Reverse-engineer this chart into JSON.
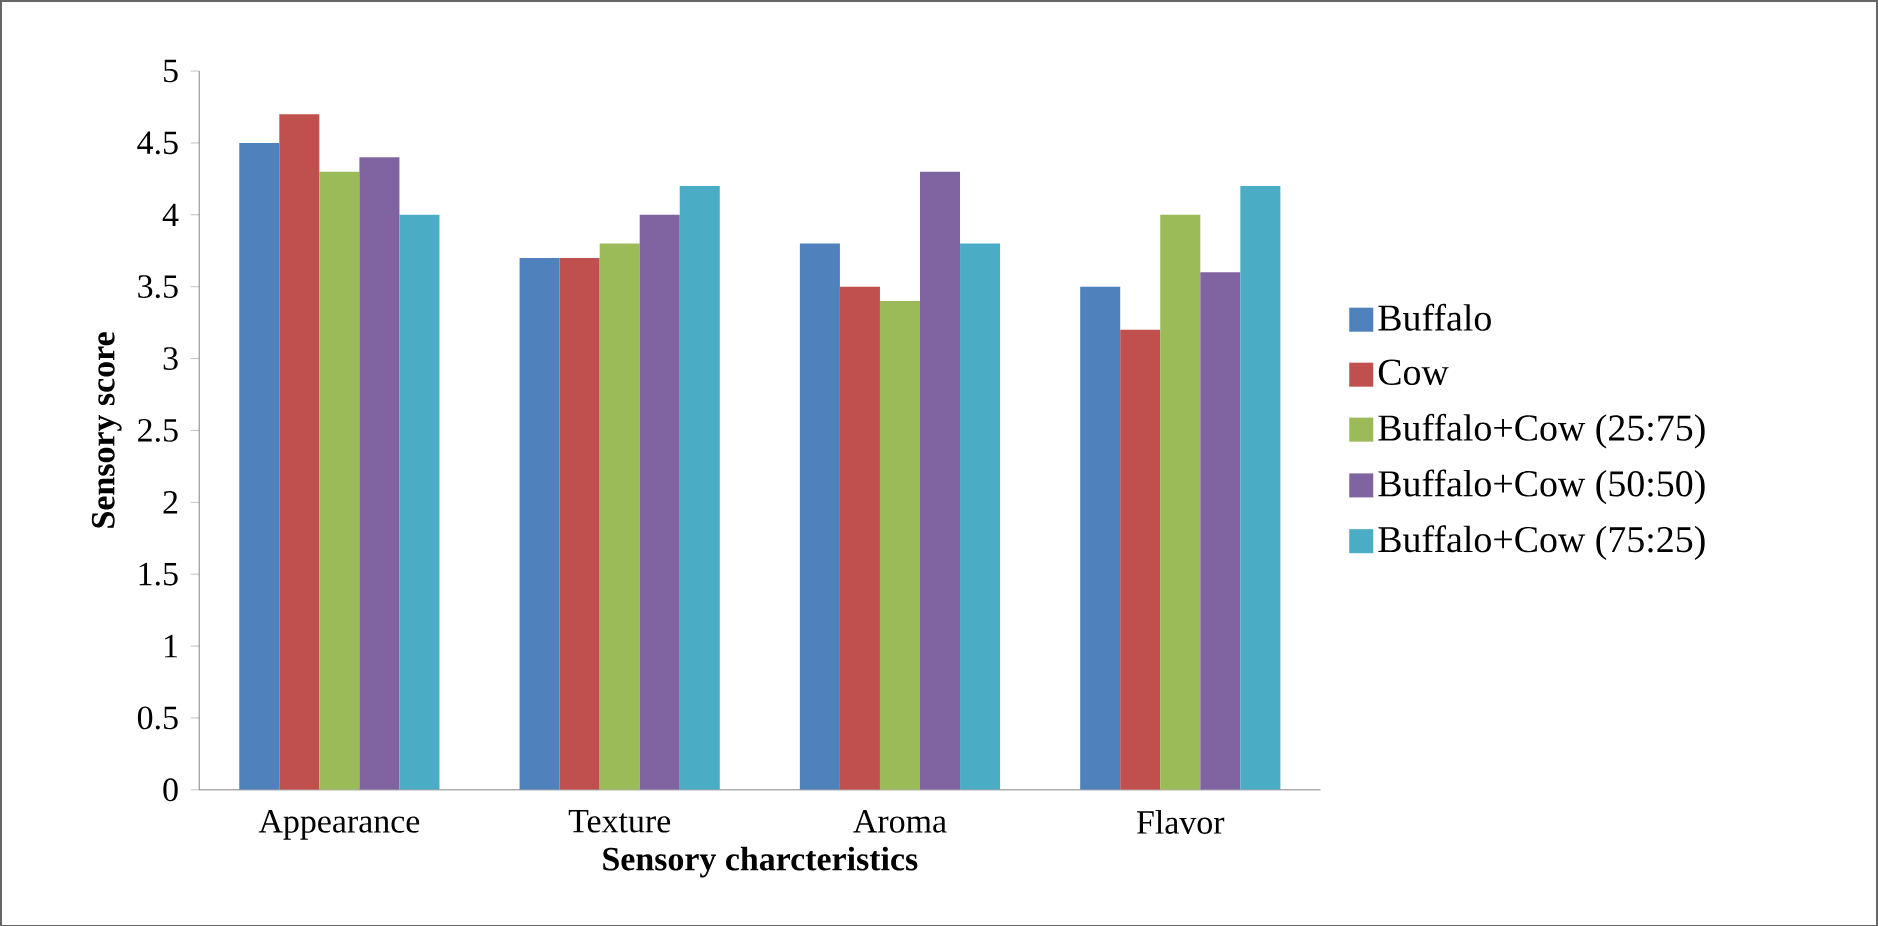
{
  "chart_data": {
    "type": "bar",
    "xlabel": "Sensory charcteristics",
    "ylabel": "Sensory score",
    "categories": [
      "Appearance",
      "Texture",
      "Aroma",
      "Flavor"
    ],
    "series": [
      {
        "name": "Buffalo",
        "color": "#4f81bd",
        "values": [
          4.5,
          3.7,
          3.8,
          3.5
        ]
      },
      {
        "name": "Cow",
        "color": "#c0504d",
        "values": [
          4.7,
          3.7,
          3.5,
          3.2
        ]
      },
      {
        "name": "Buffalo+Cow (25:75)",
        "color": "#9bbb59",
        "values": [
          4.3,
          3.8,
          3.4,
          4.0
        ]
      },
      {
        "name": "Buffalo+Cow (50:50)",
        "color": "#8064a2",
        "values": [
          4.4,
          4.0,
          4.3,
          3.6
        ]
      },
      {
        "name": "Buffalo+Cow (75:25)",
        "color": "#4bacc6",
        "values": [
          4.0,
          4.2,
          3.8,
          4.2
        ]
      }
    ],
    "ylim": [
      0,
      5
    ],
    "yticks": [
      0,
      0.5,
      1,
      1.5,
      2,
      2.5,
      3,
      3.5,
      4,
      4.5,
      5
    ],
    "legend": "right"
  }
}
